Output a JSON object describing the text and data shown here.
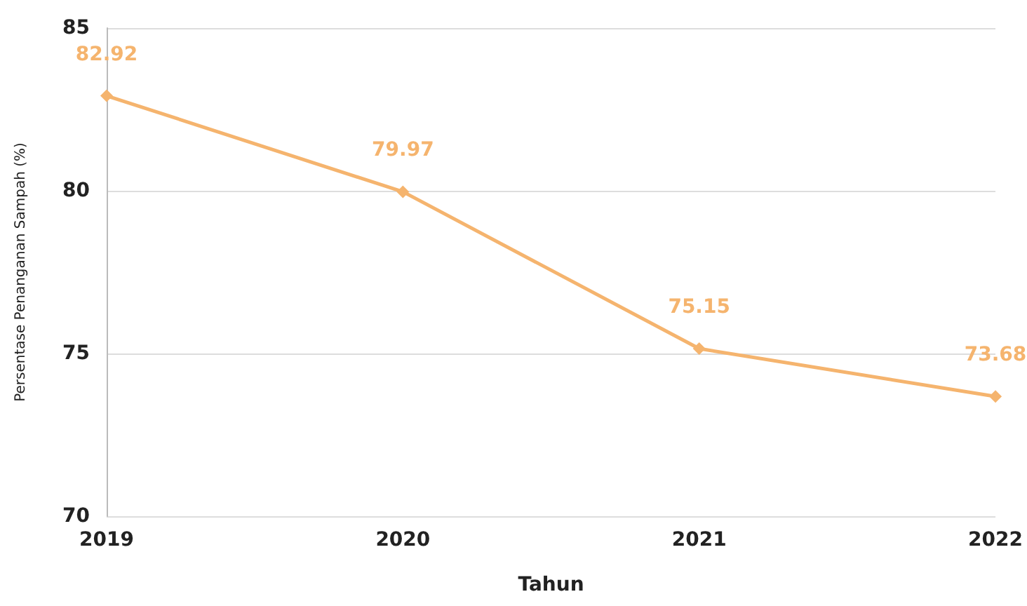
{
  "chart_data": {
    "type": "line",
    "xlabel": "Tahun",
    "ylabel": "Persentase Penanganan Sampah (%)",
    "categories": [
      "2019",
      "2020",
      "2021",
      "2022"
    ],
    "series": [
      {
        "color": "#f5b46e",
        "values": [
          82.92,
          79.97,
          75.15,
          73.68
        ]
      }
    ],
    "ylim": [
      70,
      85
    ],
    "yticks": [
      70,
      75,
      80,
      85
    ],
    "grid": "y",
    "marker": "diamond",
    "line_style": "solid",
    "data_labels": true
  }
}
